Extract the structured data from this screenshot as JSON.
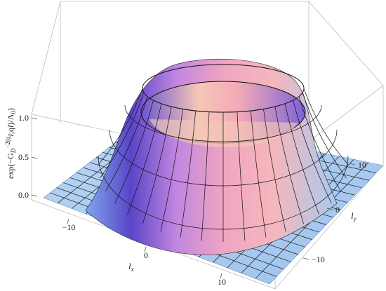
{
  "chart_data": {
    "type": "surface3d",
    "function": "exp(-(r - 8)^2 / 18), r = sqrt(lx^2 + ly^2)",
    "x_label": "l",
    "x_label_sub": "x",
    "y_label": "l",
    "y_label_sub": "y",
    "z_label": "exp(−G",
    "z_label_rest": "D",
    "z_label_tail": "−2(q",
    "z_label_q": "l",
    "z_label_mid": ";q",
    "z_label_q2": "l",
    "z_label_end": ")/Λ",
    "z_label_zero": "0",
    "z_label_close": ")",
    "xlim": [
      -16,
      16
    ],
    "ylim": [
      -16,
      16
    ],
    "zlim": [
      0,
      1
    ],
    "x_ticks": [
      "−10",
      "0",
      "10"
    ],
    "y_ticks": [
      "10",
      "0",
      "−10"
    ],
    "z_ticks": [
      "1.0",
      "0.5",
      "0.0"
    ],
    "grid_divisions": 16,
    "colors": {
      "base": "#a8cbef",
      "ring_outer": "#f3a3c0",
      "ring_shadow": "#5f47c9",
      "mesh": "#111111",
      "box": "#bbbbbb"
    }
  }
}
